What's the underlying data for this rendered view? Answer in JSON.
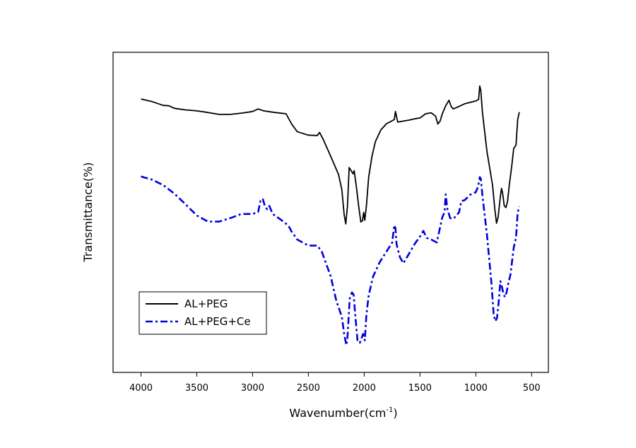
{
  "chart_data": {
    "type": "line",
    "title": "",
    "xlabel": "Wavenumber(cm",
    "xlabel_sup": "-1",
    "xlabel_close": ")",
    "ylabel": "Transmittance(%)",
    "xlim": [
      4250,
      350
    ],
    "ylim": [
      0,
      100
    ],
    "x_reversed": true,
    "y_tick_labels": false,
    "grid": false,
    "legend_position": "bottom-left",
    "xticks": [
      4000,
      3500,
      3000,
      2500,
      2000,
      1500,
      1000,
      500
    ],
    "series": [
      {
        "name": "AL+PEG",
        "color": "#000000",
        "style": "solid",
        "points": [
          [
            4000,
            85.4
          ],
          [
            3900,
            84.6
          ],
          [
            3800,
            83.4
          ],
          [
            3750,
            83.3
          ],
          [
            3700,
            82.5
          ],
          [
            3600,
            82.0
          ],
          [
            3500,
            81.7
          ],
          [
            3400,
            81.2
          ],
          [
            3300,
            80.6
          ],
          [
            3200,
            80.6
          ],
          [
            3100,
            81.0
          ],
          [
            3000,
            81.5
          ],
          [
            2950,
            82.3
          ],
          [
            2900,
            81.7
          ],
          [
            2800,
            81.2
          ],
          [
            2700,
            80.8
          ],
          [
            2650,
            77.6
          ],
          [
            2600,
            75.2
          ],
          [
            2500,
            74.1
          ],
          [
            2420,
            74.0
          ],
          [
            2400,
            75.0
          ],
          [
            2370,
            73.0
          ],
          [
            2300,
            67.5
          ],
          [
            2230,
            61.8
          ],
          [
            2200,
            57.0
          ],
          [
            2180,
            49.3
          ],
          [
            2165,
            46.4
          ],
          [
            2150,
            52.0
          ],
          [
            2135,
            64.0
          ],
          [
            2120,
            63.2
          ],
          [
            2100,
            62.0
          ],
          [
            2090,
            63.0
          ],
          [
            2070,
            58.0
          ],
          [
            2050,
            52.0
          ],
          [
            2030,
            47.0
          ],
          [
            2015,
            47.4
          ],
          [
            2005,
            50.0
          ],
          [
            1995,
            47.5
          ],
          [
            1980,
            52.0
          ],
          [
            1960,
            61.0
          ],
          [
            1930,
            67.5
          ],
          [
            1900,
            72.1
          ],
          [
            1850,
            75.8
          ],
          [
            1800,
            77.7
          ],
          [
            1760,
            78.4
          ],
          [
            1730,
            79.0
          ],
          [
            1720,
            81.5
          ],
          [
            1700,
            78.2
          ],
          [
            1650,
            78.5
          ],
          [
            1600,
            78.8
          ],
          [
            1550,
            79.2
          ],
          [
            1500,
            79.5
          ],
          [
            1450,
            80.8
          ],
          [
            1400,
            81.1
          ],
          [
            1360,
            80.0
          ],
          [
            1340,
            77.6
          ],
          [
            1320,
            78.5
          ],
          [
            1300,
            80.8
          ],
          [
            1270,
            83.3
          ],
          [
            1240,
            85.0
          ],
          [
            1220,
            83.0
          ],
          [
            1200,
            82.3
          ],
          [
            1100,
            83.9
          ],
          [
            1000,
            84.8
          ],
          [
            975,
            85.3
          ],
          [
            965,
            89.5
          ],
          [
            955,
            88.0
          ],
          [
            940,
            81.0
          ],
          [
            900,
            69.0
          ],
          [
            850,
            58.5
          ],
          [
            830,
            51.0
          ],
          [
            815,
            46.6
          ],
          [
            800,
            48.5
          ],
          [
            780,
            55.0
          ],
          [
            770,
            57.5
          ],
          [
            760,
            56.0
          ],
          [
            745,
            52.0
          ],
          [
            730,
            51.5
          ],
          [
            715,
            53.5
          ],
          [
            700,
            58.5
          ],
          [
            680,
            64.0
          ],
          [
            660,
            70.0
          ],
          [
            640,
            71.0
          ],
          [
            625,
            79.0
          ],
          [
            610,
            81.3
          ]
        ]
      },
      {
        "name": "AL+PEG+Ce",
        "color": "#0000dd",
        "style": "dashdot",
        "points": [
          [
            4000,
            61.2
          ],
          [
            3900,
            60.2
          ],
          [
            3800,
            58.5
          ],
          [
            3700,
            55.8
          ],
          [
            3600,
            52.5
          ],
          [
            3500,
            49.0
          ],
          [
            3400,
            47.1
          ],
          [
            3300,
            47.1
          ],
          [
            3200,
            48.2
          ],
          [
            3100,
            49.5
          ],
          [
            3000,
            49.5
          ],
          [
            2950,
            50.1
          ],
          [
            2930,
            53.5
          ],
          [
            2910,
            54.3
          ],
          [
            2890,
            52.0
          ],
          [
            2870,
            51.0
          ],
          [
            2850,
            52.0
          ],
          [
            2820,
            49.5
          ],
          [
            2750,
            47.8
          ],
          [
            2680,
            45.9
          ],
          [
            2650,
            44.0
          ],
          [
            2600,
            41.5
          ],
          [
            2500,
            39.6
          ],
          [
            2420,
            39.6
          ],
          [
            2380,
            37.7
          ],
          [
            2300,
            30.0
          ],
          [
            2250,
            22.4
          ],
          [
            2200,
            17.3
          ],
          [
            2180,
            12.0
          ],
          [
            2160,
            8.5
          ],
          [
            2150,
            11.0
          ],
          [
            2130,
            23.0
          ],
          [
            2110,
            25.0
          ],
          [
            2095,
            24.3
          ],
          [
            2080,
            18.0
          ],
          [
            2060,
            10.0
          ],
          [
            2040,
            9.2
          ],
          [
            2025,
            10.5
          ],
          [
            2010,
            12.0
          ],
          [
            1995,
            10.0
          ],
          [
            1980,
            18.0
          ],
          [
            1960,
            24.0
          ],
          [
            1920,
            30.0
          ],
          [
            1860,
            34.5
          ],
          [
            1800,
            37.8
          ],
          [
            1750,
            40.5
          ],
          [
            1730,
            46.0
          ],
          [
            1720,
            45.0
          ],
          [
            1710,
            40.0
          ],
          [
            1680,
            36.0
          ],
          [
            1650,
            34.1
          ],
          [
            1600,
            37.0
          ],
          [
            1550,
            40.0
          ],
          [
            1500,
            42.5
          ],
          [
            1470,
            44.2
          ],
          [
            1440,
            42.0
          ],
          [
            1400,
            41.5
          ],
          [
            1350,
            40.6
          ],
          [
            1300,
            48.5
          ],
          [
            1280,
            50.0
          ],
          [
            1270,
            55.6
          ],
          [
            1255,
            51.0
          ],
          [
            1230,
            48.2
          ],
          [
            1200,
            48.0
          ],
          [
            1150,
            50.0
          ],
          [
            1130,
            53.5
          ],
          [
            1100,
            53.8
          ],
          [
            1050,
            55.5
          ],
          [
            1020,
            56.0
          ],
          [
            1000,
            56.3
          ],
          [
            980,
            58.0
          ],
          [
            965,
            61.0
          ],
          [
            955,
            60.5
          ],
          [
            940,
            55.0
          ],
          [
            900,
            43.0
          ],
          [
            860,
            28.0
          ],
          [
            840,
            18.0
          ],
          [
            825,
            16.0
          ],
          [
            810,
            17.0
          ],
          [
            795,
            22.0
          ],
          [
            780,
            28.5
          ],
          [
            770,
            27.3
          ],
          [
            755,
            25.0
          ],
          [
            740,
            23.5
          ],
          [
            725,
            25.0
          ],
          [
            710,
            27.5
          ],
          [
            690,
            30.5
          ],
          [
            660,
            39.0
          ],
          [
            640,
            42.0
          ],
          [
            625,
            50.0
          ],
          [
            610,
            51.8
          ]
        ]
      }
    ]
  }
}
